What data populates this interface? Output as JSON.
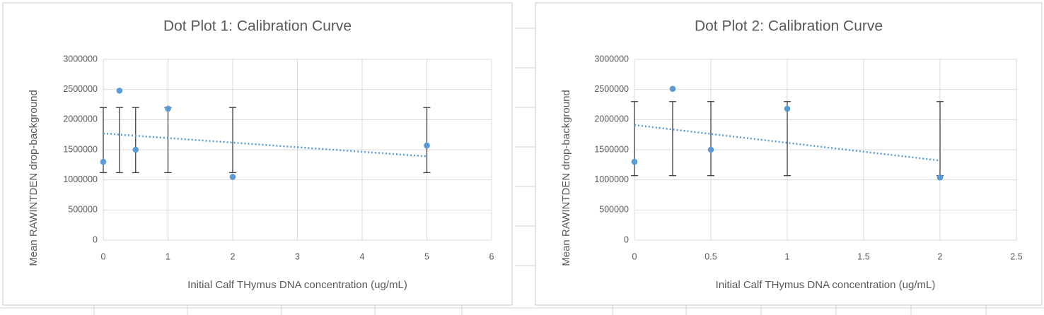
{
  "chart_data": [
    {
      "type": "scatter",
      "title": "Dot Plot 1: Calibration Curve",
      "x_label": "Initial Calf THymus DNA concentration (ug/mL)",
      "y_label": "Mean RAWINTDEN drop-background",
      "x": [
        0,
        0.25,
        0.5,
        1,
        2,
        5
      ],
      "values": [
        1300000,
        2480000,
        1500000,
        2180000,
        1050000,
        1570000
      ],
      "color": "#5b9bd5",
      "error_low": [
        1120000,
        1120000,
        1120000,
        1120000,
        1120000,
        1120000
      ],
      "error_high": [
        2200000,
        2200000,
        2200000,
        2200000,
        2200000,
        2200000
      ],
      "trendline": {
        "x": [
          0,
          5
        ],
        "values": [
          1770000,
          1390000
        ]
      },
      "xlim": [
        0,
        6
      ],
      "xticks": [
        0,
        1,
        2,
        3,
        4,
        5,
        6
      ],
      "ylim": [
        0,
        3000000
      ],
      "yticks": [
        0,
        500000,
        1000000,
        1500000,
        2000000,
        2500000,
        3000000
      ],
      "grid": true
    },
    {
      "type": "scatter",
      "title": "Dot Plot 2: Calibration Curve",
      "x_label": "Initial Calf THymus DNA concentration (ug/mL)",
      "y_label": "Mean RAWINTDEN drop-background",
      "x": [
        0,
        0.25,
        0.5,
        1,
        2
      ],
      "values": [
        1300000,
        2510000,
        1500000,
        2180000,
        1040000
      ],
      "color": "#5b9bd5",
      "error_low": [
        1070000,
        1070000,
        1070000,
        1070000,
        1070000
      ],
      "error_high": [
        2300000,
        2300000,
        2300000,
        2300000,
        2300000
      ],
      "trendline": {
        "x": [
          0,
          2
        ],
        "values": [
          1910000,
          1320000
        ]
      },
      "xlim": [
        0,
        2.5
      ],
      "xticks": [
        0,
        0.5,
        1,
        1.5,
        2,
        2.5
      ],
      "ylim": [
        0,
        3000000
      ],
      "yticks": [
        0,
        500000,
        1000000,
        1500000,
        2000000,
        2500000,
        3000000
      ],
      "grid": true
    }
  ]
}
